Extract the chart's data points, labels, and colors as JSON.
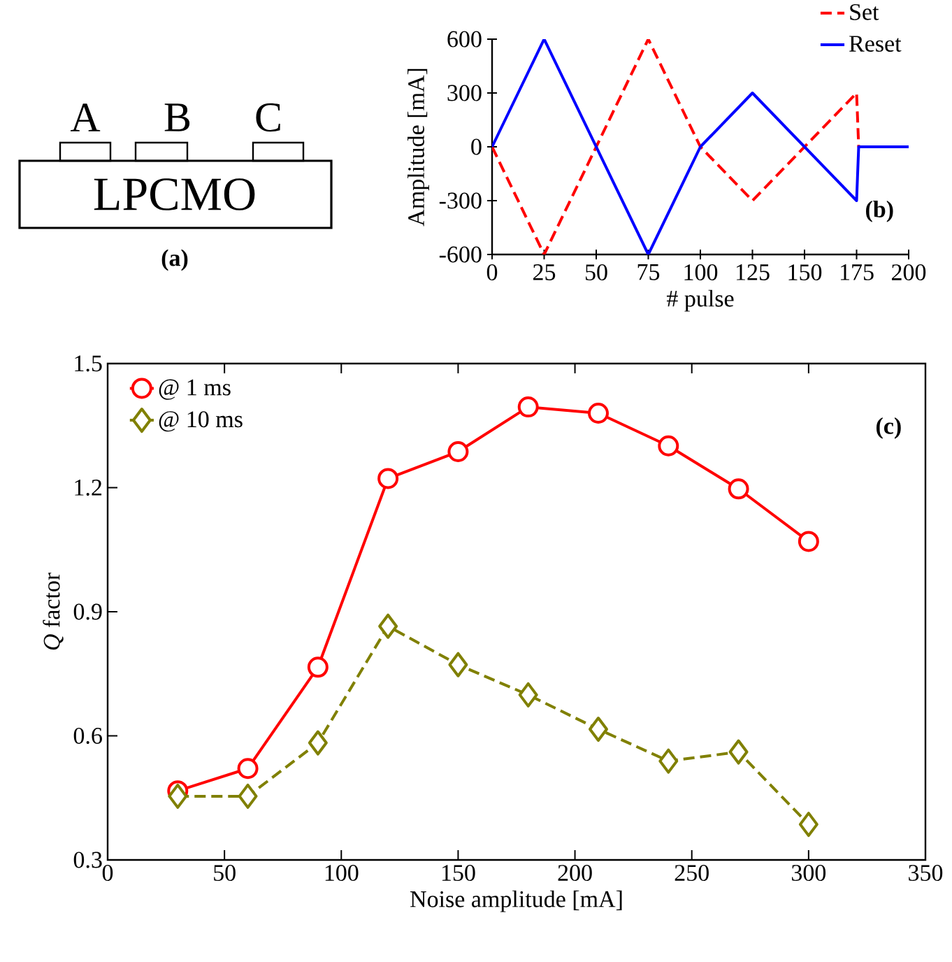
{
  "chart_data": [
    {
      "type": "other",
      "annotations": [
        "A",
        "B",
        "C",
        "LPCMO",
        "(a)"
      ]
    },
    {
      "type": "line",
      "xlabel": "# pulse",
      "ylabel": "Amplitude [mA]",
      "xlim": [
        0,
        200
      ],
      "ylim": [
        -600,
        600
      ],
      "xticks": [
        0,
        25,
        50,
        75,
        100,
        125,
        150,
        175,
        200
      ],
      "yticks": [
        -600,
        -300,
        0,
        300,
        600
      ],
      "legend": "top right",
      "annotations": [
        "(b)"
      ],
      "series": [
        {
          "name": "Set",
          "color": "#ff0000",
          "line_style": "dashed",
          "x": [
            0,
            25,
            75,
            100,
            125,
            175,
            176,
            200
          ],
          "values": [
            0,
            -600,
            600,
            0,
            -300,
            300,
            0,
            0
          ]
        },
        {
          "name": "Reset",
          "color": "#0000ff",
          "line_style": "solid",
          "x": [
            0,
            25,
            75,
            100,
            125,
            175,
            176,
            200
          ],
          "values": [
            0,
            600,
            -600,
            0,
            300,
            -300,
            0,
            0
          ]
        }
      ]
    },
    {
      "type": "line",
      "xlabel": "Noise amplitude [mA]",
      "ylabel": "*Q* factor",
      "xlim": [
        0,
        350
      ],
      "ylim": [
        0.3,
        1.5
      ],
      "xticks": [
        0,
        50,
        100,
        150,
        200,
        250,
        300,
        350
      ],
      "yticks": [
        0.3,
        0.6,
        0.9,
        1.2,
        1.5
      ],
      "legend": "top left",
      "annotations": [
        "(c)"
      ],
      "x": [
        30,
        60,
        90,
        120,
        150,
        180,
        210,
        240,
        270,
        300
      ],
      "series": [
        {
          "name": "@ 1 ms",
          "color": "#ff0000",
          "marker": "circle",
          "line_style": "solid",
          "values": [
            0.467,
            0.521,
            0.766,
            1.222,
            1.287,
            1.395,
            1.38,
            1.301,
            1.197,
            1.07
          ]
        },
        {
          "name": "@ 10 ms",
          "color": "#808000",
          "marker": "diamond",
          "line_style": "dashed",
          "values": [
            0.454,
            0.454,
            0.583,
            0.865,
            0.772,
            0.699,
            0.616,
            0.539,
            0.561,
            0.386
          ]
        }
      ]
    }
  ]
}
